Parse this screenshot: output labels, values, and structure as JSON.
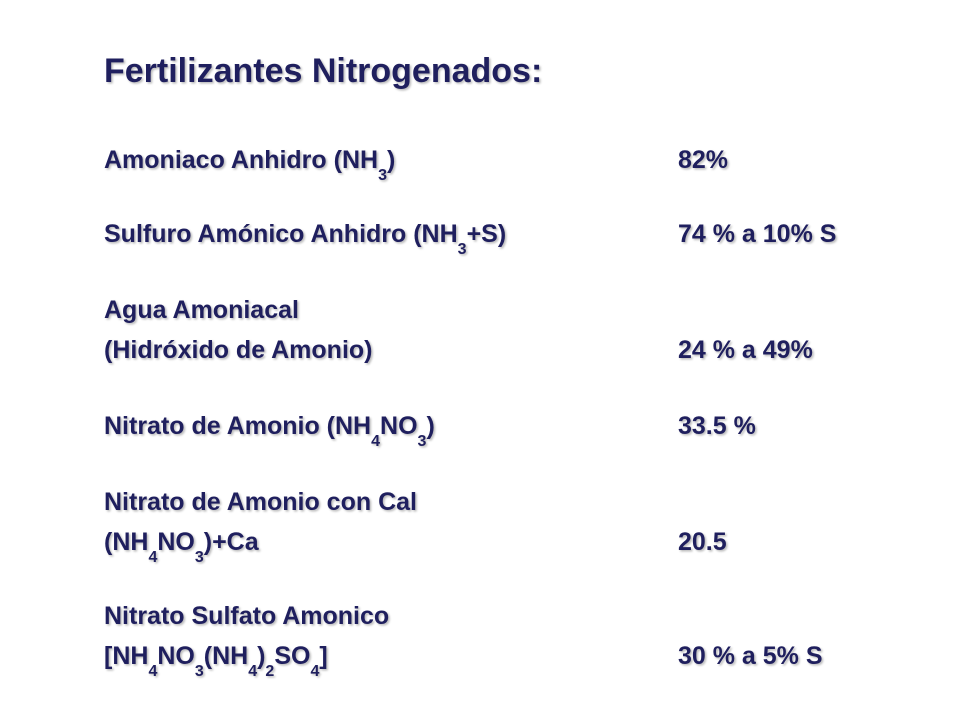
{
  "slide": {
    "title": "Fertilizantes Nitrogenados:",
    "text_color": "#1f1f5e",
    "items": [
      {
        "name": "Amoniaco Anhidro (NH<sub>3</sub>)",
        "value": "82%"
      },
      {
        "name": "Sulfuro Amónico Anhidro (NH<sub>3</sub>+S)",
        "value": "74 % a 10% S"
      },
      {
        "name": "Agua Amoniacal",
        "value": ""
      },
      {
        "name": "(Hidróxido de Amonio)",
        "value": "24 % a 49%"
      },
      {
        "name": "Nitrato de Amonio (NH<sub>4</sub>NO<sub>3</sub>)",
        "value": "33.5 %"
      },
      {
        "name": "Nitrato de Amonio con Cal",
        "value": ""
      },
      {
        "name": "(NH<sub>4</sub>NO<sub>3</sub>)+Ca",
        "value": "20.5"
      },
      {
        "name": "Nitrato Sulfato Amonico",
        "value": ""
      },
      {
        "name": "[NH<sub>4</sub>NO<sub>3</sub>(NH<sub>4</sub>)<sub>2</sub>SO<sub>4</sub>]",
        "value": "30 % a 5% S"
      }
    ]
  }
}
